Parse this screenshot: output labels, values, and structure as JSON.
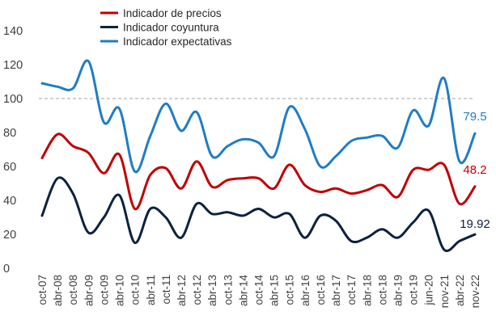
{
  "chart_data": {
    "type": "line",
    "title": "",
    "xlabel": "",
    "ylabel": "",
    "ylim": [
      0,
      140
    ],
    "yticks": [
      0,
      20,
      40,
      60,
      80,
      100,
      120,
      140
    ],
    "reference_line": 100,
    "legend_position": "top-center",
    "categories": [
      "oct-07",
      "abr-08",
      "oct-08",
      "abr-09",
      "oct-09",
      "abr-10",
      "oct-10",
      "abr-11",
      "oct-11",
      "abr-12",
      "oct-12",
      "abr-13",
      "oct-13",
      "abr-14",
      "oct-14",
      "abr-15",
      "oct-15",
      "abr-16",
      "oct-16",
      "abr-17",
      "oct-17",
      "abr-18",
      "oct-18",
      "abr-19",
      "oct-19",
      "jun-20",
      "nov-21",
      "abr-22",
      "nov-22"
    ],
    "series": [
      {
        "name": "Indicador de precios",
        "color": "#c00000",
        "values": [
          65,
          79,
          72,
          68,
          56,
          67,
          35,
          55,
          59,
          47,
          63,
          48,
          52,
          53,
          53,
          47,
          61,
          49,
          45,
          47,
          44,
          46,
          49,
          42,
          58,
          58,
          61,
          38,
          48.2
        ],
        "end_label": "48.2"
      },
      {
        "name": "Indicador coyuntura",
        "color": "#0d2240",
        "values": [
          31,
          53,
          44,
          21,
          30,
          43,
          15,
          35,
          30,
          18,
          38,
          32,
          33,
          31,
          35,
          30,
          32,
          18,
          31,
          28,
          16,
          18,
          23,
          18,
          27,
          34,
          11,
          16,
          19.92
        ],
        "end_label": "19.92"
      },
      {
        "name": "Indicador expectativas",
        "color": "#1f7dc4",
        "values": [
          109,
          107,
          106,
          122,
          86,
          94,
          57,
          78,
          97,
          81,
          92,
          66,
          72,
          76,
          74,
          66,
          95,
          82,
          60,
          66,
          75,
          77,
          78,
          71,
          93,
          84,
          112,
          63,
          79.5
        ],
        "end_label": "79.5"
      }
    ]
  }
}
